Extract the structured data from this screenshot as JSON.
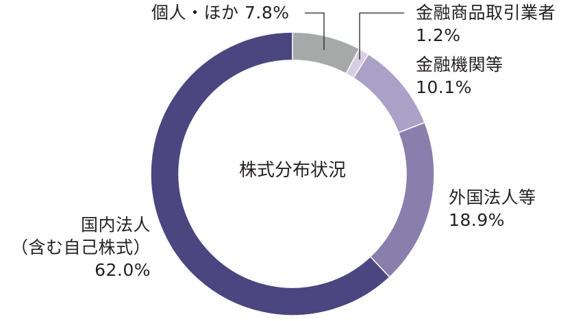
{
  "chart_data": {
    "type": "pie",
    "subtype": "donut",
    "title": "株式分布状況",
    "start_angle_deg": 0,
    "direction": "clockwise",
    "categories": [
      "個人・ほか",
      "金融商品取引業者",
      "金融機関等",
      "外国法人等",
      "国内法人（含む自己株式）"
    ],
    "values": [
      7.8,
      1.2,
      10.1,
      18.9,
      62.0
    ],
    "unit": "%",
    "colors": [
      "#a7a9a8",
      "#d6cfe3",
      "#aba1c6",
      "#897fad",
      "#4b4680"
    ],
    "legend": "none (direct labels)"
  },
  "center_label": "株式分布状況",
  "labels": {
    "individual": {
      "name": "個人・ほか",
      "value": "7.8%"
    },
    "securities": {
      "name": "金融商品取引業者",
      "value": "1.2%"
    },
    "financial": {
      "name": "金融機関等",
      "value": "10.1%"
    },
    "foreign": {
      "name": "外国法人等",
      "value": "18.9%"
    },
    "domestic": {
      "name_line1": "国内法人",
      "name_line2": "（含む自己株式）",
      "value": "62.0%"
    }
  }
}
